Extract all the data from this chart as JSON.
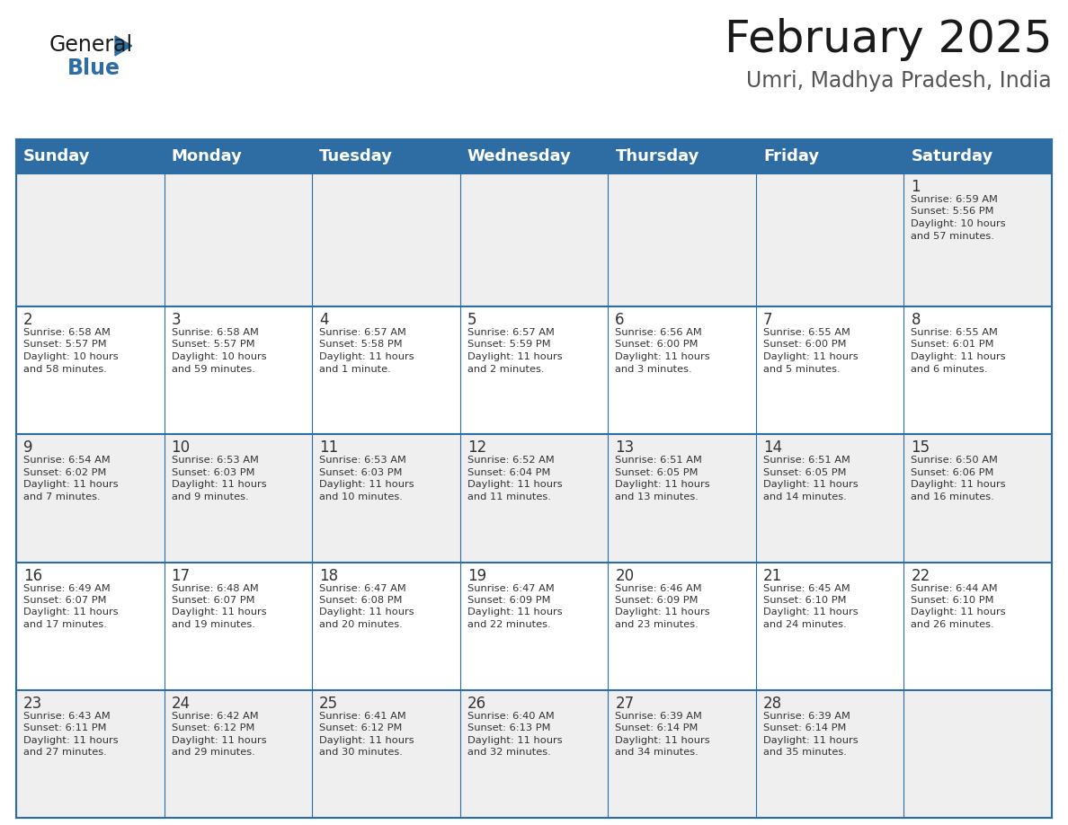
{
  "title": "February 2025",
  "subtitle": "Umri, Madhya Pradesh, India",
  "header_color": "#2E6DA4",
  "header_text_color": "#FFFFFF",
  "row_bg_colors": [
    "#EFEFEF",
    "#FFFFFF",
    "#EFEFEF",
    "#FFFFFF",
    "#EFEFEF"
  ],
  "border_color": "#2E6DA4",
  "day_names": [
    "Sunday",
    "Monday",
    "Tuesday",
    "Wednesday",
    "Thursday",
    "Friday",
    "Saturday"
  ],
  "title_fontsize": 36,
  "subtitle_fontsize": 17,
  "day_number_fontsize": 12,
  "cell_text_fontsize": 8.2,
  "header_fontsize": 13,
  "days": [
    {
      "day": 1,
      "col": 6,
      "row": 0,
      "sunrise": "6:59 AM",
      "sunset": "5:56 PM",
      "daylight": "10 hours and 57 minutes."
    },
    {
      "day": 2,
      "col": 0,
      "row": 1,
      "sunrise": "6:58 AM",
      "sunset": "5:57 PM",
      "daylight": "10 hours and 58 minutes."
    },
    {
      "day": 3,
      "col": 1,
      "row": 1,
      "sunrise": "6:58 AM",
      "sunset": "5:57 PM",
      "daylight": "10 hours and 59 minutes."
    },
    {
      "day": 4,
      "col": 2,
      "row": 1,
      "sunrise": "6:57 AM",
      "sunset": "5:58 PM",
      "daylight": "11 hours and 1 minute."
    },
    {
      "day": 5,
      "col": 3,
      "row": 1,
      "sunrise": "6:57 AM",
      "sunset": "5:59 PM",
      "daylight": "11 hours and 2 minutes."
    },
    {
      "day": 6,
      "col": 4,
      "row": 1,
      "sunrise": "6:56 AM",
      "sunset": "6:00 PM",
      "daylight": "11 hours and 3 minutes."
    },
    {
      "day": 7,
      "col": 5,
      "row": 1,
      "sunrise": "6:55 AM",
      "sunset": "6:00 PM",
      "daylight": "11 hours and 5 minutes."
    },
    {
      "day": 8,
      "col": 6,
      "row": 1,
      "sunrise": "6:55 AM",
      "sunset": "6:01 PM",
      "daylight": "11 hours and 6 minutes."
    },
    {
      "day": 9,
      "col": 0,
      "row": 2,
      "sunrise": "6:54 AM",
      "sunset": "6:02 PM",
      "daylight": "11 hours and 7 minutes."
    },
    {
      "day": 10,
      "col": 1,
      "row": 2,
      "sunrise": "6:53 AM",
      "sunset": "6:03 PM",
      "daylight": "11 hours and 9 minutes."
    },
    {
      "day": 11,
      "col": 2,
      "row": 2,
      "sunrise": "6:53 AM",
      "sunset": "6:03 PM",
      "daylight": "11 hours and 10 minutes."
    },
    {
      "day": 12,
      "col": 3,
      "row": 2,
      "sunrise": "6:52 AM",
      "sunset": "6:04 PM",
      "daylight": "11 hours and 11 minutes."
    },
    {
      "day": 13,
      "col": 4,
      "row": 2,
      "sunrise": "6:51 AM",
      "sunset": "6:05 PM",
      "daylight": "11 hours and 13 minutes."
    },
    {
      "day": 14,
      "col": 5,
      "row": 2,
      "sunrise": "6:51 AM",
      "sunset": "6:05 PM",
      "daylight": "11 hours and 14 minutes."
    },
    {
      "day": 15,
      "col": 6,
      "row": 2,
      "sunrise": "6:50 AM",
      "sunset": "6:06 PM",
      "daylight": "11 hours and 16 minutes."
    },
    {
      "day": 16,
      "col": 0,
      "row": 3,
      "sunrise": "6:49 AM",
      "sunset": "6:07 PM",
      "daylight": "11 hours and 17 minutes."
    },
    {
      "day": 17,
      "col": 1,
      "row": 3,
      "sunrise": "6:48 AM",
      "sunset": "6:07 PM",
      "daylight": "11 hours and 19 minutes."
    },
    {
      "day": 18,
      "col": 2,
      "row": 3,
      "sunrise": "6:47 AM",
      "sunset": "6:08 PM",
      "daylight": "11 hours and 20 minutes."
    },
    {
      "day": 19,
      "col": 3,
      "row": 3,
      "sunrise": "6:47 AM",
      "sunset": "6:09 PM",
      "daylight": "11 hours and 22 minutes."
    },
    {
      "day": 20,
      "col": 4,
      "row": 3,
      "sunrise": "6:46 AM",
      "sunset": "6:09 PM",
      "daylight": "11 hours and 23 minutes."
    },
    {
      "day": 21,
      "col": 5,
      "row": 3,
      "sunrise": "6:45 AM",
      "sunset": "6:10 PM",
      "daylight": "11 hours and 24 minutes."
    },
    {
      "day": 22,
      "col": 6,
      "row": 3,
      "sunrise": "6:44 AM",
      "sunset": "6:10 PM",
      "daylight": "11 hours and 26 minutes."
    },
    {
      "day": 23,
      "col": 0,
      "row": 4,
      "sunrise": "6:43 AM",
      "sunset": "6:11 PM",
      "daylight": "11 hours and 27 minutes."
    },
    {
      "day": 24,
      "col": 1,
      "row": 4,
      "sunrise": "6:42 AM",
      "sunset": "6:12 PM",
      "daylight": "11 hours and 29 minutes."
    },
    {
      "day": 25,
      "col": 2,
      "row": 4,
      "sunrise": "6:41 AM",
      "sunset": "6:12 PM",
      "daylight": "11 hours and 30 minutes."
    },
    {
      "day": 26,
      "col": 3,
      "row": 4,
      "sunrise": "6:40 AM",
      "sunset": "6:13 PM",
      "daylight": "11 hours and 32 minutes."
    },
    {
      "day": 27,
      "col": 4,
      "row": 4,
      "sunrise": "6:39 AM",
      "sunset": "6:14 PM",
      "daylight": "11 hours and 34 minutes."
    },
    {
      "day": 28,
      "col": 5,
      "row": 4,
      "sunrise": "6:39 AM",
      "sunset": "6:14 PM",
      "daylight": "11 hours and 35 minutes."
    }
  ],
  "num_rows": 5,
  "num_cols": 7,
  "logo_text_general": "General",
  "logo_text_blue": "Blue",
  "logo_color_general": "#1a1a1a",
  "logo_color_blue": "#2E6DA4",
  "logo_triangle_color": "#2E6DA4"
}
